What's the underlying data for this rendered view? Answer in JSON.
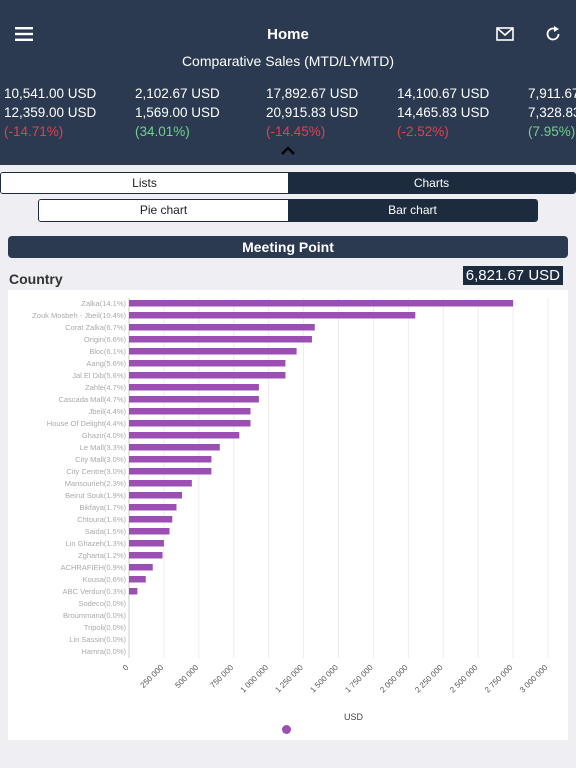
{
  "header": {
    "title": "Home",
    "subtitle": "Comparative Sales (MTD/LYMTD)",
    "stats": [
      {
        "current": "10,541.00 USD",
        "previous": "12,359.00 USD",
        "change": "(-14.71%)",
        "trend": "neg"
      },
      {
        "current": "2,102.67 USD",
        "previous": "1,569.00 USD",
        "change": "(34.01%)",
        "trend": "pos"
      },
      {
        "current": "17,892.67 USD",
        "previous": "20,915.83 USD",
        "change": "(-14.45%)",
        "trend": "neg"
      },
      {
        "current": "14,100.67 USD",
        "previous": "14,465.83 USD",
        "change": "(-2.52%)",
        "trend": "neg"
      },
      {
        "current": "7,911.67",
        "previous": "7,328.83",
        "change": "(7.95%)",
        "trend": "pos"
      }
    ]
  },
  "tabs": {
    "lists": "Lists",
    "charts": "Charts",
    "active": "charts"
  },
  "chart_toggle": {
    "pie": "Pie chart",
    "bar": "Bar chart",
    "active": "bar"
  },
  "banner": "Meeting Point",
  "dimension_label": "Country",
  "total": "6,821.67 USD",
  "colors": {
    "header_bg": "#2b3a51",
    "bar": "#9b4fb2",
    "negative": "#e0424a",
    "positive": "#6dd48a"
  },
  "chart_data": {
    "type": "bar",
    "orientation": "horizontal",
    "xlabel": "USD",
    "xlim": [
      0,
      3000000
    ],
    "xticks": [
      "0",
      "250 000",
      "500 000",
      "750 000",
      "1 000 000",
      "1 250 000",
      "1 500 000",
      "1 750 000",
      "2 000 000",
      "2 250 000",
      "2 500 000",
      "2 750 000",
      "3 000 000"
    ],
    "categories": [
      "Zalka(14.1%)",
      "Zouk Mosbeh - Jbeil(10.4%)",
      "Corat Zalka(6.7%)",
      "Origin(6.6%)",
      "Bloc(6.1%)",
      "Aang(5.6%)",
      "Jal El Dib(5.6%)",
      "Zahle(4.7%)",
      "Cascada Mall(4.7%)",
      "Jbeil(4.4%)",
      "House Of Delight(4.4%)",
      "Ghazir(4.0%)",
      "Le Mall(3.3%)",
      "City Mall(3.0%)",
      "City Centre(3.0%)",
      "Mansourieh(2.3%)",
      "Beirut Souk(1.9%)",
      "Bikfaya(1.7%)",
      "Chtoura(1.6%)",
      "Saida(1.5%)",
      "Lin Ghazeh(1.3%)",
      "Zgharta(1.2%)",
      "ACHRAFIEH(0.9%)",
      "Kousa(0.6%)",
      "ABC Verdun(0.3%)",
      "Sodeco(0.0%)",
      "Broummana(0.0%)",
      "Tripoli(0.0%)",
      "Lin Sassin(0.0%)",
      "Hamra(0.0%)"
    ],
    "values": [
      2750000,
      2050000,
      1330000,
      1310000,
      1200000,
      1120000,
      1120000,
      930000,
      930000,
      870000,
      870000,
      790000,
      650000,
      590000,
      590000,
      450000,
      380000,
      340000,
      310000,
      290000,
      250000,
      240000,
      170000,
      120000,
      60000,
      0,
      0,
      0,
      0,
      0
    ],
    "grid": true,
    "legend": "none"
  }
}
